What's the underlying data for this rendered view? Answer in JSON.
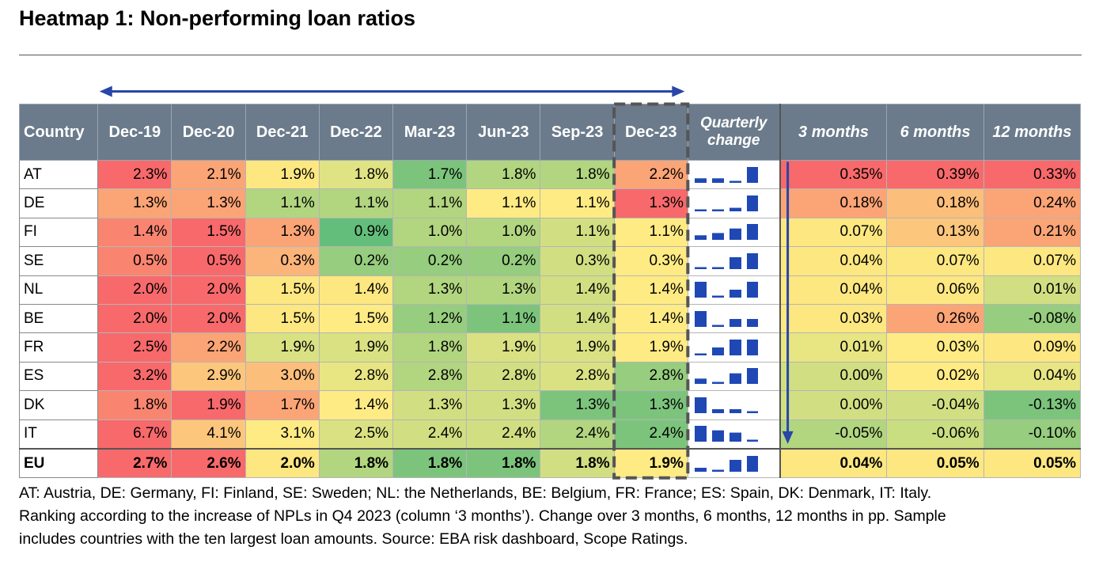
{
  "title": "Heatmap 1: Non-performing loan ratios",
  "chart_data": {
    "type": "heatmap",
    "title": "Heatmap 1: Non-performing loan ratios",
    "columns": {
      "country": "Country",
      "periods": [
        "Dec-19",
        "Dec-20",
        "Dec-21",
        "Dec-22",
        "Mar-23",
        "Jun-23",
        "Sep-23",
        "Dec-23"
      ],
      "quarterly": "Quarterly change",
      "changes": [
        "3 months",
        "6 months",
        "12 months"
      ]
    },
    "rows": [
      {
        "country": "AT",
        "values": [
          "2.3%",
          "2.1%",
          "1.9%",
          "1.8%",
          "1.7%",
          "1.8%",
          "1.8%",
          "2.2%"
        ],
        "changes": [
          "0.35%",
          "0.39%",
          "0.33%"
        ],
        "quarterly": [
          -0.1,
          0.1,
          0.0,
          0.35
        ]
      },
      {
        "country": "DE",
        "values": [
          "1.3%",
          "1.3%",
          "1.1%",
          "1.1%",
          "1.1%",
          "1.1%",
          "1.1%",
          "1.3%"
        ],
        "changes": [
          "0.18%",
          "0.18%",
          "0.24%"
        ],
        "quarterly": [
          0.0,
          0.0,
          0.04,
          0.18
        ]
      },
      {
        "country": "FI",
        "values": [
          "1.4%",
          "1.5%",
          "1.3%",
          "0.9%",
          "1.0%",
          "1.0%",
          "1.1%",
          "1.1%"
        ],
        "changes": [
          "0.07%",
          "0.13%",
          "0.21%"
        ],
        "quarterly": [
          0.02,
          0.03,
          0.05,
          0.07
        ]
      },
      {
        "country": "SE",
        "values": [
          "0.5%",
          "0.5%",
          "0.3%",
          "0.2%",
          "0.2%",
          "0.2%",
          "0.3%",
          "0.3%"
        ],
        "changes": [
          "0.04%",
          "0.07%",
          "0.07%"
        ],
        "quarterly": [
          0.0,
          0.0,
          0.03,
          0.04
        ]
      },
      {
        "country": "NL",
        "values": [
          "2.0%",
          "2.0%",
          "1.5%",
          "1.4%",
          "1.3%",
          "1.3%",
          "1.4%",
          "1.4%"
        ],
        "changes": [
          "0.04%",
          "0.06%",
          "0.01%"
        ],
        "quarterly": [
          0.04,
          0.0,
          0.02,
          0.04
        ]
      },
      {
        "country": "BE",
        "values": [
          "2.0%",
          "2.0%",
          "1.5%",
          "1.5%",
          "1.2%",
          "1.1%",
          "1.4%",
          "1.4%"
        ],
        "changes": [
          "0.03%",
          "0.26%",
          "-0.08%"
        ],
        "quarterly": [
          0.06,
          0.0,
          0.03,
          0.03
        ]
      },
      {
        "country": "FR",
        "values": [
          "2.5%",
          "2.2%",
          "1.9%",
          "1.9%",
          "1.8%",
          "1.9%",
          "1.9%",
          "1.9%"
        ],
        "changes": [
          "0.01%",
          "0.03%",
          "0.09%"
        ],
        "quarterly": [
          0.0,
          0.01,
          0.02,
          0.02
        ]
      },
      {
        "country": "ES",
        "values": [
          "3.2%",
          "2.9%",
          "3.0%",
          "2.8%",
          "2.8%",
          "2.8%",
          "2.8%",
          "2.8%"
        ],
        "changes": [
          "0.00%",
          "0.02%",
          "0.04%"
        ],
        "quarterly": [
          0.01,
          0.0,
          0.02,
          0.03
        ]
      },
      {
        "country": "DK",
        "values": [
          "1.8%",
          "1.9%",
          "1.7%",
          "1.4%",
          "1.3%",
          "1.3%",
          "1.3%",
          "1.3%"
        ],
        "changes": [
          "0.00%",
          "-0.04%",
          "-0.13%"
        ],
        "quarterly": [
          0.04,
          0.01,
          0.01,
          0.0
        ]
      },
      {
        "country": "IT",
        "values": [
          "6.7%",
          "4.1%",
          "3.1%",
          "2.5%",
          "2.4%",
          "2.4%",
          "2.4%",
          "2.4%"
        ],
        "changes": [
          "-0.05%",
          "-0.06%",
          "-0.10%"
        ],
        "quarterly": [
          0.07,
          0.05,
          0.04,
          0.0
        ]
      }
    ],
    "total": {
      "country": "EU",
      "values": [
        "2.7%",
        "2.6%",
        "2.0%",
        "1.8%",
        "1.8%",
        "1.8%",
        "1.8%",
        "1.9%"
      ],
      "changes": [
        "0.04%",
        "0.05%",
        "0.05%"
      ],
      "quarterly": [
        0.01,
        0.0,
        0.03,
        0.04
      ]
    },
    "colors": {
      "levels": [
        [
          "#f8696b",
          "#fba476",
          "#fde781",
          "#e0e383",
          "#7cc47c",
          "#b2d580",
          "#b2d580",
          "#fba476"
        ],
        [
          "#fba476",
          "#fba476",
          "#b2d580",
          "#b2d580",
          "#b2d580",
          "#ffeb84",
          "#ffeb84",
          "#f8696b"
        ],
        [
          "#f98570",
          "#f8696b",
          "#fba476",
          "#63be7b",
          "#b2d580",
          "#b2d580",
          "#d1df82",
          "#ffeb84"
        ],
        [
          "#f98570",
          "#f8696b",
          "#fbb479",
          "#96cd7e",
          "#96cd7e",
          "#96cd7e",
          "#d1df82",
          "#ffeb84"
        ],
        [
          "#f8696b",
          "#f8696b",
          "#fde781",
          "#fde781",
          "#b2d580",
          "#b2d580",
          "#d1df82",
          "#ffeb84"
        ],
        [
          "#f8696b",
          "#f8696b",
          "#fde781",
          "#ffeb84",
          "#96cd7e",
          "#7cc47c",
          "#d1df82",
          "#ffeb84"
        ],
        [
          "#f8696b",
          "#fba476",
          "#d9e183",
          "#d9e183",
          "#b2d580",
          "#d9e183",
          "#d9e183",
          "#ffeb84"
        ],
        [
          "#f8696b",
          "#fcc67c",
          "#fcbe7b",
          "#e8e583",
          "#b2d580",
          "#d1df82",
          "#d9e183",
          "#96cd7e"
        ],
        [
          "#f98570",
          "#f8696b",
          "#fba476",
          "#ffeb84",
          "#d1df82",
          "#d1df82",
          "#7cc47c",
          "#7cc47c"
        ],
        [
          "#f8696b",
          "#fcc67c",
          "#ffeb84",
          "#d9e183",
          "#d1df82",
          "#d1df82",
          "#b2d580",
          "#7cc47c"
        ],
        [
          "#f8696b",
          "#f8696b",
          "#fde781",
          "#b2d580",
          "#7cc47c",
          "#7cc47c",
          "#d1df82",
          "#ffeb84"
        ]
      ],
      "changes": [
        [
          "#f8696b",
          "#f8696b",
          "#f8696b"
        ],
        [
          "#fba476",
          "#fcbe7b",
          "#fba476"
        ],
        [
          "#fde781",
          "#fcc67c",
          "#fba476"
        ],
        [
          "#fde781",
          "#fde781",
          "#fde781"
        ],
        [
          "#fde781",
          "#fde781",
          "#d1df82"
        ],
        [
          "#fde781",
          "#fba476",
          "#96cd7e"
        ],
        [
          "#e8e583",
          "#ffeb84",
          "#fde781"
        ],
        [
          "#d1df82",
          "#ffeb84",
          "#e8e583"
        ],
        [
          "#d1df82",
          "#d1df82",
          "#7cc47c"
        ],
        [
          "#b2d580",
          "#c9dd81",
          "#96cd7e"
        ],
        [
          "#fde781",
          "#fde781",
          "#fde781"
        ]
      ],
      "spark_bar": "#1f48b5",
      "header_bg": "#6b7b8b",
      "arrow": "#2845a8"
    }
  },
  "notes": [
    "AT: Austria, DE: Germany, FI: Finland, SE: Sweden; NL: the Netherlands, BE: Belgium, FR: France; ES: Spain, DK: Denmark, IT: Italy.",
    "Ranking according to the increase of NPLs in Q4 2023 (column ‘3 months’). Change over 3 months, 6 months, 12 months in pp. Sample",
    "includes countries with the ten largest loan amounts. Source: EBA risk dashboard, Scope Ratings."
  ]
}
